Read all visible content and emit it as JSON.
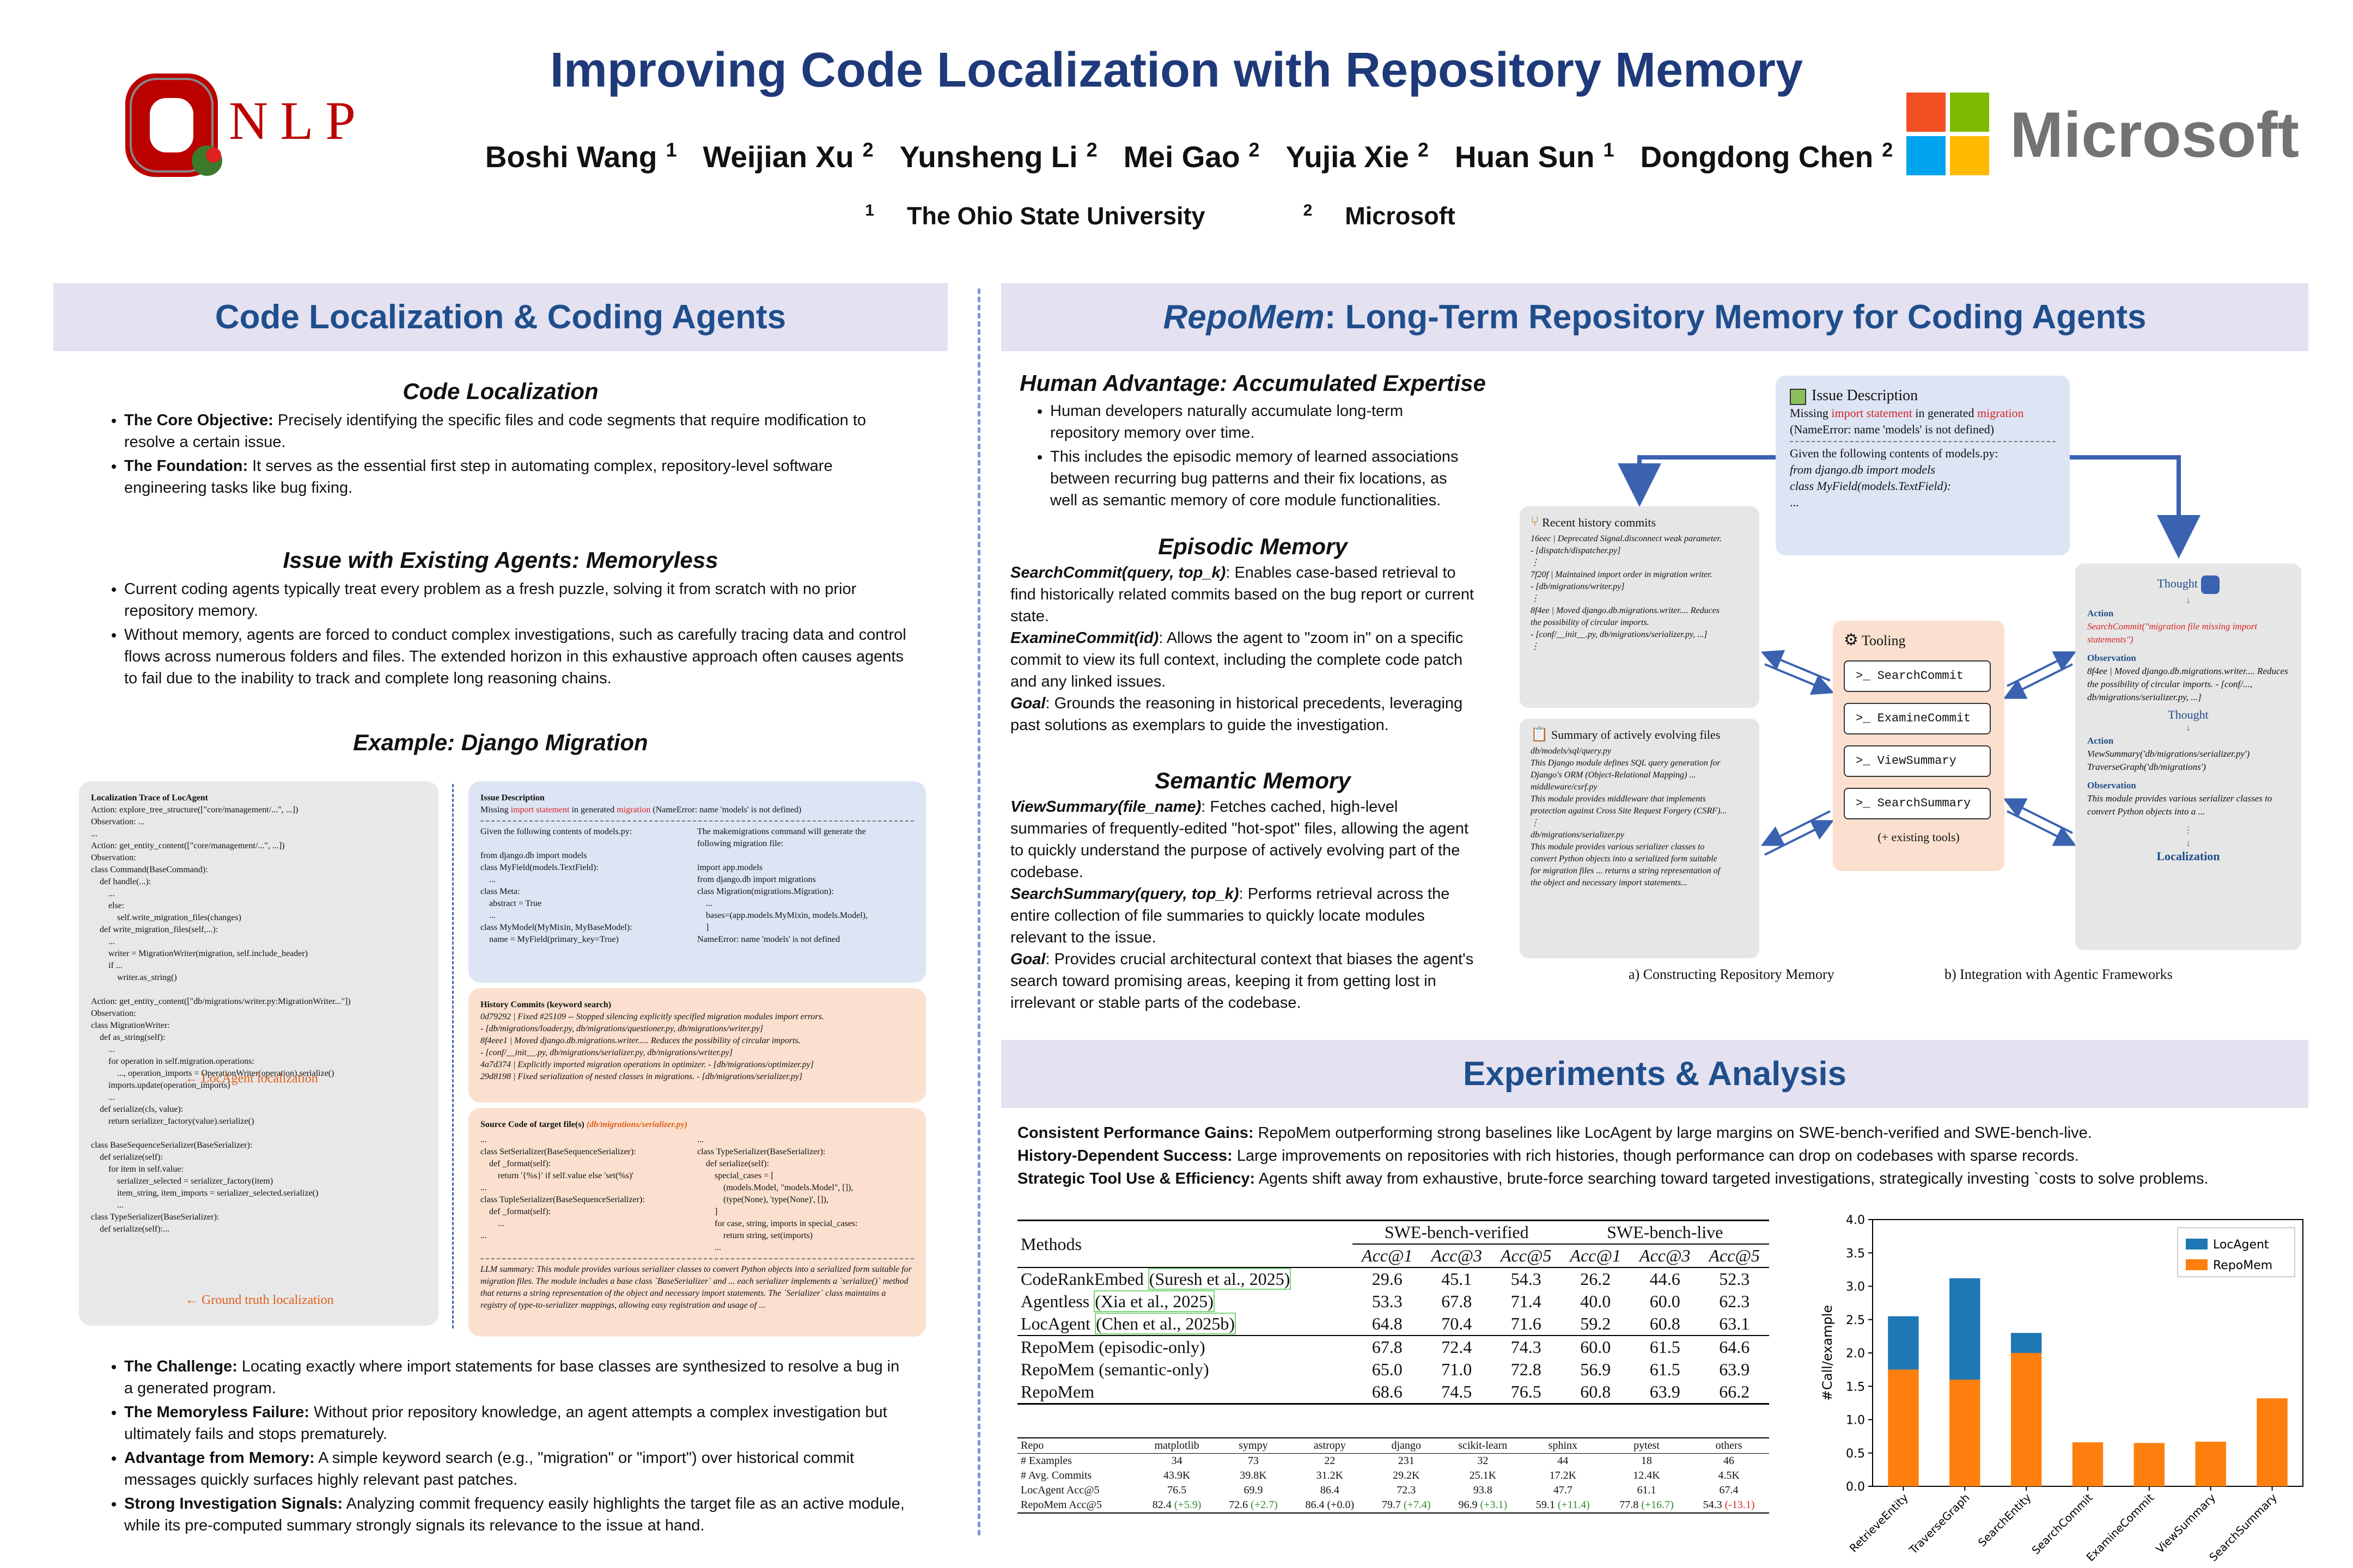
{
  "header": {
    "title": "Improving Code Localization with Repository Memory",
    "authors": [
      {
        "name": "Boshi Wang",
        "aff": "1"
      },
      {
        "name": "Weijian Xu",
        "aff": "2"
      },
      {
        "name": "Yunsheng Li",
        "aff": "2"
      },
      {
        "name": "Mei Gao",
        "aff": "2"
      },
      {
        "name": "Yujia Xie",
        "aff": "2"
      },
      {
        "name": "Huan Sun",
        "aff": "1"
      },
      {
        "name": "Dongdong Chen",
        "aff": "2"
      }
    ],
    "affiliations": [
      {
        "num": "1",
        "name": "The Ohio State University"
      },
      {
        "num": "2",
        "name": "Microsoft"
      }
    ],
    "left_logo_text": "NLP",
    "right_logo_text": "Microsoft",
    "ms_colors": [
      "#f25022",
      "#7fba00",
      "#00a4ef",
      "#ffb900"
    ]
  },
  "left": {
    "banner": "Code Localization & Coding Agents",
    "cl_heading": "Code Localization",
    "cl_items": [
      {
        "b": "The Core Objective:",
        "t": " Precisely identifying the specific files and code segments that require modification to resolve a certain issue."
      },
      {
        "b": "The Foundation:",
        "t": " It serves as the essential first step in automating complex, repository-level software engineering tasks like bug fixing."
      }
    ],
    "issue_heading": "Issue with Existing Agents: Memoryless",
    "issue_items": [
      "Current coding agents typically treat every problem as a fresh puzzle, solving it from scratch with no prior repository memory.",
      "Without memory, agents are forced to conduct complex investigations, such as carefully tracing data and control flows across numerous folders and files. The extended horizon in this exhaustive approach often causes agents to fail due to the inability to track and complete long reasoning chains."
    ],
    "example_heading": "Example: Django Migration",
    "bottom_items": [
      {
        "b": "The Challenge:",
        "t": " Locating exactly where import statements for base classes are synthesized to resolve a bug in a generated program."
      },
      {
        "b": "The Memoryless Failure:",
        "t": " Without prior repository knowledge, an agent attempts a complex investigation but ultimately fails and stops prematurely."
      },
      {
        "b": "Advantage from Memory:",
        "t": " A simple keyword search (e.g., \"migration\" or \"import\") over historical commit messages quickly surfaces highly relevant past patches."
      },
      {
        "b": "Strong Investigation Signals:",
        "t": " Analyzing commit frequency easily highlights the target file as an active module, while its pre-computed summary strongly signals its relevance to the issue at hand."
      }
    ]
  },
  "figure": {
    "trace_title": "Localization Trace of LocAgent",
    "trace_lines": [
      "Action: explore_tree_structure([\"core/management/...\", ...])",
      "Observation: ...",
      "...",
      "Action: get_entity_content([\"core/management/...\", ...])",
      "Observation:",
      "class Command(BaseCommand):",
      "    def handle(...):",
      "        ...",
      "        else:",
      "            self.write_migration_files(changes)",
      "    def write_migration_files(self,...):",
      "        ...",
      "        writer = MigrationWriter(migration, self.include_header)",
      "        if ...",
      "            writer.as_string()",
      "",
      "Action: get_entity_content([\"db/migrations/writer.py:MigrationWriter...\"])",
      "Observation:",
      "class MigrationWriter:",
      "    def as_string(self):",
      "        ...",
      "        for operation in self.migration.operations:",
      "            ..., operation_imports = OperationWriter(operation).serialize()",
      "        imports.update(operation_imports)",
      "        ...",
      "    def serialize(cls, value):",
      "        return serializer_factory(value).serialize()",
      "",
      "class BaseSequenceSerializer(BaseSerializer):",
      "    def serialize(self):",
      "        for item in self.value:",
      "            serializer_selected = serializer_factory(item)",
      "            item_string, item_imports = serializer_selected.serialize()",
      "            ...",
      "class TypeSerializer(BaseSerializer):",
      "    def serialize(self):..."
    ],
    "trace_label_1": "LocAgent localization",
    "trace_label_2": "Ground truth localization",
    "issue_title": "Issue Description",
    "issue_prefix": "Missing ",
    "issue_red1": "import statement",
    "issue_mid": " in generated ",
    "issue_red2": "migration",
    "issue_suffix": " (NameError: name 'models' is not defined)",
    "issue_left": [
      "Given the following contents of models.py:",
      "",
      "from django.db import models",
      "class MyField(models.TextField):",
      "    ...",
      "class Meta:",
      "    abstract = True",
      "    ...",
      "class MyModel(MyMixin, MyBaseModel):",
      "    name = MyField(primary_key=True)"
    ],
    "issue_right": [
      "The makemigrations command will generate the",
      "following migration file:",
      "",
      "import app.models",
      "from django.db import migrations",
      "class Migration(migrations.Migration):",
      "    ...",
      "    bases=(app.models.MyMixin, models.Model),",
      "    ]",
      "NameError: name 'models' is not defined"
    ],
    "hist_title": "History Commits (keyword search)",
    "hist_lines": [
      "0d79292 | Fixed #25109 -- Stopped silencing explicitly specified migration modules import errors.",
      "    - [db/migrations/loader.py, db/migrations/questioner.py, db/migrations/writer.py]",
      "8f4eee1 | Moved django.db.migrations.writer..... Reduces the possibility of circular imports.",
      "    - [conf/__init__.py, db/migrations/serializer.py, db/migrations/writer.py]",
      "4a7d374 | Explicitly imported migration operations in optimizer.   - [db/migrations/optimizer.py]",
      "29d8198 | Fixed serialization of nested classes in migrations.    - [db/migrations/serializer.py]"
    ],
    "src_title": "Source Code of target file(s) ",
    "src_file": "(db/migrations/serializer.py)",
    "src_left": [
      "...",
      "class SetSerializer(BaseSequenceSerializer):",
      "    def _format(self):",
      "        return '{%s}' if self.value else 'set(%s)'",
      "...",
      "class TupleSerializer(BaseSequenceSerializer):",
      "    def _format(self):",
      "        ...",
      "..."
    ],
    "src_right": [
      "...",
      "class TypeSerializer(BaseSerializer):",
      "    def serialize(self):",
      "        special_cases = [",
      "            (models.Model, \"models.Model\", []),",
      "            (type(None), 'type(None)', []),",
      "        ]",
      "        for case, string, imports in special_cases:",
      "            return string, set(imports)",
      "        ..."
    ],
    "llm_summary": "LLM summary: This module provides various serializer classes to convert Python objects into a serialized form suitable for migration files. The module includes a base class `BaseSerializer` and ... each serializer implements a `serialize()` method that returns a string representation of the object and necessary import statements. The `Serializer` class maintains a registry of type-to-serializer mappings, allowing easy registration and usage of ..."
  },
  "right": {
    "banner_italic": "RepoMem",
    "banner_rest": ": Long-Term Repository Memory for Coding Agents",
    "human_heading": "Human Advantage: Accumulated Expertise",
    "human_items": [
      "Human developers naturally accumulate long-term repository memory over time.",
      "This includes the episodic memory of learned associations between recurring bug patterns and their fix locations, as well as semantic memory of core module functionalities."
    ],
    "episodic_heading": "Episodic Memory",
    "episodic": [
      {
        "k": "SearchCommit(query, top_k)",
        "t": ": Enables case-based retrieval to find historically related commits based on the bug report or current state."
      },
      {
        "k": "ExamineCommit(id)",
        "t": ": Allows the agent to \"zoom in\" on a specific commit to view its full context, including the complete code patch and any linked issues."
      },
      {
        "k": "Goal",
        "t": ": Grounds the reasoning in historical precedents, leveraging past solutions as exemplars to guide the investigation."
      }
    ],
    "semantic_heading": "Semantic Memory",
    "semantic": [
      {
        "k": "ViewSummary(file_name)",
        "t": ": Fetches cached, high-level summaries of frequently-edited \"hot-spot\" files, allowing the agent to quickly understand the purpose of actively evolving part of the codebase."
      },
      {
        "k": "SearchSummary(query, top_k)",
        "t": ": Performs retrieval across the entire collection of file summaries to quickly locate modules relevant to the issue."
      },
      {
        "k": "Goal",
        "t": ": Provides crucial architectural context that biases the agent's search toward promising areas, keeping it from getting lost in irrelevant or stable parts of the codebase."
      }
    ]
  },
  "diagram": {
    "issue_title": "Issue Description",
    "issue_line1_pre": "Missing ",
    "issue_line1_r1": "import statement",
    "issue_line1_mid": " in generated ",
    "issue_line1_r2": "migration",
    "issue_line2": "(NameError: name 'models' is not defined)",
    "issue_line3": "Given the following contents of models.py:",
    "issue_line4": "from django.db import models",
    "issue_line5": "class MyField(models.TextField):",
    "issue_line6": "...",
    "hist_title": "Recent history commits",
    "hist_lines": [
      "16eec | Deprecated Signal.disconnect weak parameter.",
      "   - [dispatch/dispatcher.py]",
      "⋮",
      "7f20f | Maintained import order in migration writer.",
      "   - [db/migrations/writer.py]",
      "⋮",
      "8f4ee | Moved django.db.migrations.writer.... Reduces",
      "the possibility of circular imports.",
      "   - [conf/__init__.py, db/migrations/serializer.py, ...]",
      "⋮"
    ],
    "sum_title": "Summary of actively evolving files",
    "sum_lines": [
      "db/models/sql/query.py",
      "This Django module defines SQL query generation for",
      "Django's ORM (Object-Relational Mapping) ...",
      "",
      "middleware/csrf.py",
      "This module provides middleware that implements",
      "protection against Cross Site Request Forgery (CSRF)...",
      "⋮",
      "db/migrations/serializer.py",
      "This module provides various serializer classes to",
      "convert Python objects into a serialized form suitable",
      "for migration files ... returns a string representation of",
      "the object and necessary import statements..."
    ],
    "tool_title": "Tooling",
    "tools": [
      "SearchCommit",
      "ExamineCommit",
      "ViewSummary",
      "SearchSummary"
    ],
    "tool_extra": "(+ existing tools)",
    "agent": {
      "thought1": "Thought",
      "action1_h": "Action",
      "action1": "SearchCommit(\"migration file missing import statements\")",
      "obs1_h": "Observation",
      "obs1": "8f4ee | Moved django.db.migrations.writer.... Reduces the possibility of circular imports. - [conf/..., db/migrations/serializer.py, ...]",
      "thought2": "Thought",
      "action2_h": "Action",
      "action2": "ViewSummary('db/migrations/serializer.py') TraverseGraph('db/migrations')",
      "obs2_h": "Observation",
      "obs2": "This module provides various serializer classes to convert Python objects into a ...",
      "final": "Localization"
    },
    "cap_a": "a) Constructing Repository Memory",
    "cap_b": "b) Integration with Agentic Frameworks"
  },
  "experiments": {
    "banner": "Experiments & Analysis",
    "points": [
      {
        "b": "Consistent Performance Gains:",
        "t": " RepoMem outperforming strong baselines like LocAgent by large margins on SWE-bench-verified and SWE-bench-live."
      },
      {
        "b": "History-Dependent Success:",
        "t": " Large improvements on repositories with rich histories, though performance can drop on codebases with sparse records."
      },
      {
        "b": "Strategic Tool Use & Efficiency:",
        "t": " Agents shift away from exhaustive, brute-force searching toward targeted investigations, strategically investing `costs to solve problems."
      }
    ],
    "table": {
      "methods_header": "Methods",
      "group1": "SWE-bench-verified",
      "group2": "SWE-bench-live",
      "metrics": [
        "Acc@1",
        "Acc@3",
        "Acc@5",
        "Acc@1",
        "Acc@3",
        "Acc@5"
      ],
      "rows_a": [
        {
          "name": "CodeRankEmbed",
          "cite": "(Suresh et al., 2025)",
          "v": [
            "29.6",
            "45.1",
            "54.3",
            "26.2",
            "44.6",
            "52.3"
          ]
        },
        {
          "name": "Agentless",
          "cite": "(Xia et al., 2025)",
          "v": [
            "53.3",
            "67.8",
            "71.4",
            "40.0",
            "60.0",
            "62.3"
          ]
        },
        {
          "name": "LocAgent",
          "cite": "(Chen et al., 2025b)",
          "v": [
            "64.8",
            "70.4",
            "71.6",
            "59.2",
            "60.8",
            "63.1"
          ]
        }
      ],
      "rows_b": [
        {
          "name": "RepoMem (episodic-only)",
          "v": [
            "67.8",
            "72.4",
            "74.3",
            "60.0",
            "61.5",
            "64.6"
          ]
        },
        {
          "name": "RepoMem (semantic-only)",
          "v": [
            "65.0",
            "71.0",
            "72.8",
            "56.9",
            "61.5",
            "63.9"
          ]
        },
        {
          "name": "RepoMem",
          "v": [
            "68.6",
            "74.5",
            "76.5",
            "60.8",
            "63.9",
            "66.2"
          ]
        }
      ]
    },
    "repo_table": {
      "header": [
        "Repo",
        "matplotlib",
        "sympy",
        "astropy",
        "django",
        "scikit-learn",
        "sphinx",
        "pytest",
        "others"
      ],
      "rows": [
        {
          "label": "# Examples",
          "v": [
            "34",
            "73",
            "22",
            "231",
            "32",
            "44",
            "18",
            "46"
          ]
        },
        {
          "label": "# Avg. Commits",
          "v": [
            "43.9K",
            "39.8K",
            "31.2K",
            "29.2K",
            "25.1K",
            "17.2K",
            "12.4K",
            "4.5K"
          ]
        },
        {
          "label": "LocAgent Acc@5",
          "v": [
            "76.5",
            "69.9",
            "86.4",
            "72.3",
            "93.8",
            "47.7",
            "61.1",
            "67.4"
          ]
        }
      ],
      "repomem_label": "RepoMem Acc@5",
      "repomem": [
        {
          "v": "82.4",
          "d": "(+5.9)",
          "c": "up"
        },
        {
          "v": "72.6",
          "d": "(+2.7)",
          "c": "up"
        },
        {
          "v": "86.4",
          "d": "(+0.0)",
          "c": "zero"
        },
        {
          "v": "79.7",
          "d": "(+7.4)",
          "c": "up"
        },
        {
          "v": "96.9",
          "d": "(+3.1)",
          "c": "up"
        },
        {
          "v": "59.1",
          "d": "(+11.4)",
          "c": "up"
        },
        {
          "v": "77.8",
          "d": "(+16.7)",
          "c": "up"
        },
        {
          "v": "54.3",
          "d": "(-13.1)",
          "c": "down"
        }
      ]
    }
  },
  "chart_data": {
    "type": "bar",
    "categories": [
      "RetrieveEntity",
      "TraverseGraph",
      "SearchEntity",
      "SearchCommit",
      "ExamineCommit",
      "ViewSummary",
      "SearchSummary"
    ],
    "series": [
      {
        "name": "LocAgent",
        "color": "#1f77b4",
        "values": [
          2.55,
          3.12,
          2.3,
          0,
          0,
          0,
          0
        ]
      },
      {
        "name": "RepoMem",
        "color": "#ff7f0e",
        "values": [
          1.75,
          1.6,
          2.0,
          0.66,
          0.65,
          0.67,
          1.32
        ]
      }
    ],
    "ylabel": "#Call/example",
    "ylim": [
      0,
      4.0
    ],
    "yticks": [
      "0.0",
      "0.5",
      "1.0",
      "1.5",
      "2.0",
      "2.5",
      "3.0",
      "3.5",
      "4.0"
    ],
    "legend_position": "top-right"
  }
}
